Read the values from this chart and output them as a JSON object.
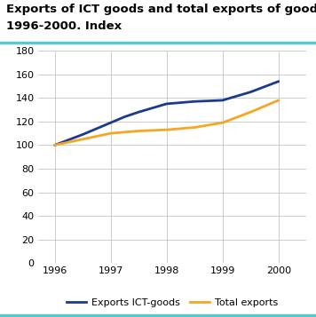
{
  "title_line1": "Exports of ICT goods and total exports of goods.",
  "title_line2": "1996-2000. Index",
  "title_color": "#000000",
  "title_fontsize": 9.5,
  "title_fontweight": "bold",
  "accent_line_color": "#5bc8cd",
  "ict_x": [
    1996,
    1996.5,
    1997,
    1997.25,
    1997.5,
    1998,
    1998.5,
    1998.75,
    1999,
    1999.5,
    2000
  ],
  "ict_y": [
    100,
    109,
    119,
    124,
    128,
    135,
    137,
    137.5,
    138,
    145,
    154
  ],
  "total_x": [
    1996,
    1996.5,
    1997,
    1997.5,
    1998,
    1998.5,
    1998.75,
    1999,
    1999.5,
    2000
  ],
  "total_y": [
    100,
    105,
    110,
    112,
    113,
    115,
    117,
    119,
    128,
    138
  ],
  "ict_color": "#1a3a8c",
  "total_color": "#f5a623",
  "ict_label": "Exports ICT-goods",
  "total_label": "Total exports",
  "xlim": [
    1995.7,
    2000.5
  ],
  "ylim": [
    0,
    180
  ],
  "yticks": [
    0,
    20,
    40,
    60,
    80,
    100,
    120,
    140,
    160,
    180
  ],
  "xticks": [
    1996,
    1997,
    1998,
    1999,
    2000
  ],
  "grid_color": "#cccccc",
  "bg_color": "#ffffff",
  "linewidth": 2.0
}
